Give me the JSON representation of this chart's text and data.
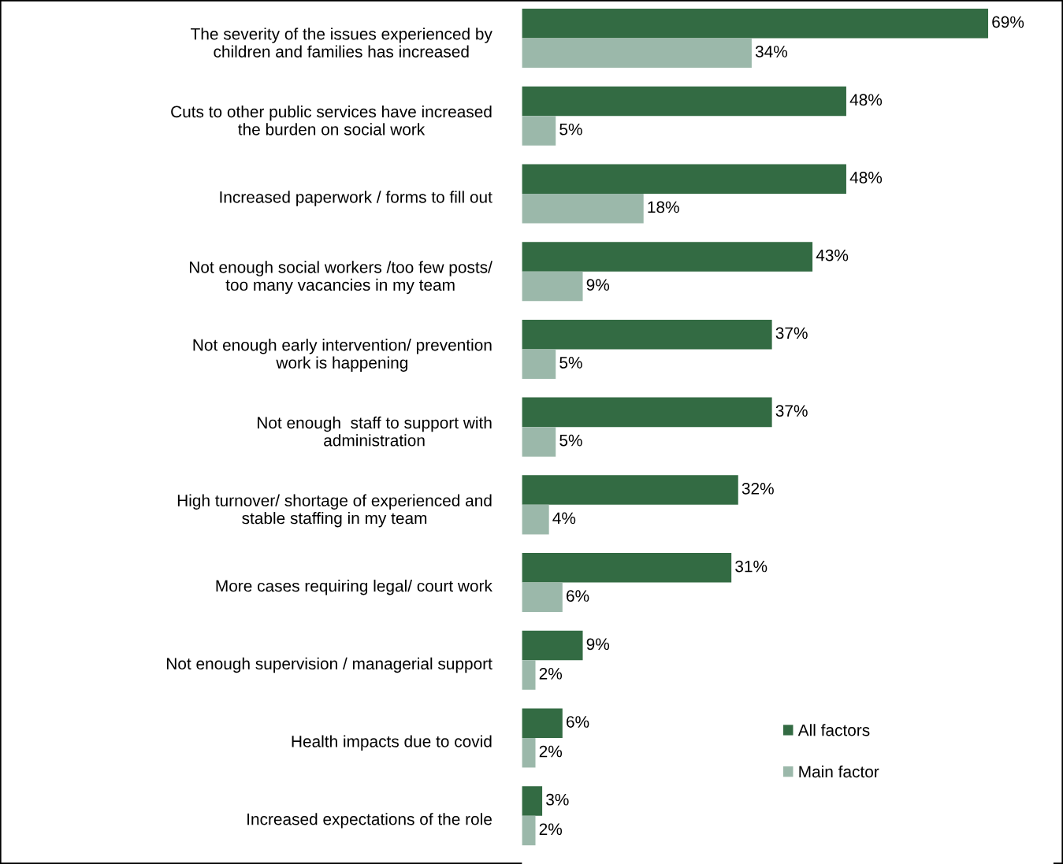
{
  "chart_data": {
    "type": "bar",
    "orientation": "horizontal",
    "legend": "bottom right",
    "grid": false,
    "categories": [
      "The severity of the issues experienced by\nchildren and families has increased",
      "Cuts to other public services have increased\nthe burden on social work",
      "Increased paperwork / forms to fill out",
      "Not enough social workers /too few posts/\ntoo many vacancies in my team",
      "Not enough early intervention/ prevention\nwork is happening",
      "Not enough  staff to support with\nadministration",
      "High turnover/ shortage of experienced and\nstable staffing in my team",
      "More cases requiring legal/ court work",
      "Not enough supervision / managerial support",
      "Health impacts due to covid",
      "Increased expectations of the role"
    ],
    "series": [
      {
        "name": "All factors",
        "color": "#336b43",
        "values": [
          69,
          48,
          48,
          43,
          37,
          37,
          32,
          31,
          9,
          6,
          3
        ],
        "value_labels": [
          "69%",
          "48%",
          "48%",
          "43%",
          "37%",
          "37%",
          "32%",
          "31%",
          "9%",
          "6%",
          "3%"
        ]
      },
      {
        "name": "Main factor",
        "color": "#9bb8aa",
        "values": [
          34,
          5,
          18,
          9,
          5,
          5,
          4,
          6,
          2,
          2,
          2
        ],
        "value_labels": [
          "34%",
          "5%",
          "18%",
          "9%",
          "5%",
          "5%",
          "4%",
          "6%",
          "2%",
          "2%",
          "2%"
        ]
      }
    ]
  }
}
